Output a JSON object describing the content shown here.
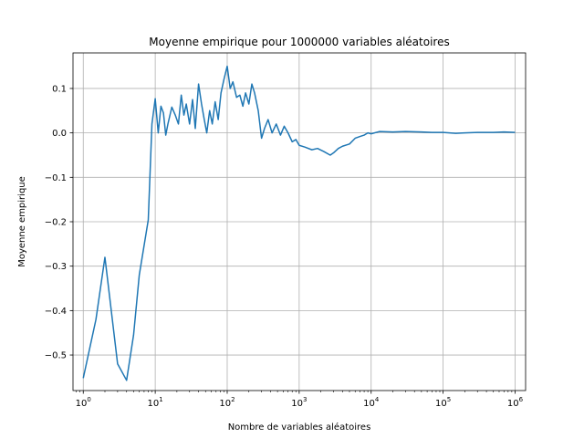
{
  "chart_data": {
    "type": "line",
    "title": "Moyenne empirique pour 1000000 variables aléatoires",
    "xlabel": "Nombre de variables aléatoires",
    "ylabel": "Moyenne empirique",
    "xscale": "log",
    "xlim": [
      0.72,
      1400000
    ],
    "ylim": [
      -0.58,
      0.18
    ],
    "grid": true,
    "line_color": "#1f77b4",
    "x_ticks": [
      {
        "value": 1,
        "base": "10",
        "exp": "0"
      },
      {
        "value": 10,
        "base": "10",
        "exp": "1"
      },
      {
        "value": 100,
        "base": "10",
        "exp": "2"
      },
      {
        "value": 1000,
        "base": "10",
        "exp": "3"
      },
      {
        "value": 10000,
        "base": "10",
        "exp": "4"
      },
      {
        "value": 100000,
        "base": "10",
        "exp": "5"
      },
      {
        "value": 1000000,
        "base": "10",
        "exp": "6"
      }
    ],
    "y_ticks": [
      {
        "value": 0.1,
        "label": "0.1"
      },
      {
        "value": 0.0,
        "label": "0.0"
      },
      {
        "value": -0.1,
        "label": "−0.1"
      },
      {
        "value": -0.2,
        "label": "−0.2"
      },
      {
        "value": -0.3,
        "label": "−0.3"
      },
      {
        "value": -0.4,
        "label": "−0.4"
      },
      {
        "value": -0.5,
        "label": "−0.5"
      }
    ],
    "series": [
      {
        "x": [
          1,
          1.5,
          2,
          3,
          4,
          5,
          6,
          8,
          9,
          10,
          11,
          12,
          13,
          14,
          15,
          17,
          19,
          21,
          23,
          25,
          27,
          30,
          33,
          36,
          40,
          44,
          48,
          52,
          57,
          62,
          68,
          75,
          82,
          90,
          100,
          110,
          120,
          135,
          150,
          165,
          180,
          200,
          220,
          240,
          270,
          300,
          330,
          370,
          420,
          480,
          550,
          620,
          700,
          800,
          900,
          1000,
          1200,
          1500,
          1800,
          2200,
          2700,
          3000,
          3500,
          4000,
          5000,
          6000,
          7000,
          8000,
          9000,
          10000,
          13000,
          20000,
          30000,
          50000,
          70000,
          100000,
          150000,
          200000,
          300000,
          500000,
          700000,
          1000000
        ],
        "y": [
          -0.552,
          -0.42,
          -0.28,
          -0.52,
          -0.557,
          -0.455,
          -0.32,
          -0.196,
          0.02,
          0.077,
          0.0,
          0.06,
          0.045,
          -0.005,
          0.02,
          0.058,
          0.04,
          0.02,
          0.085,
          0.04,
          0.065,
          0.02,
          0.075,
          0.01,
          0.11,
          0.065,
          0.03,
          0.0,
          0.05,
          0.02,
          0.07,
          0.03,
          0.09,
          0.12,
          0.15,
          0.1,
          0.115,
          0.08,
          0.085,
          0.06,
          0.09,
          0.065,
          0.11,
          0.09,
          0.05,
          -0.012,
          0.01,
          0.03,
          0.0,
          0.02,
          -0.005,
          0.015,
          0.0,
          -0.02,
          -0.015,
          -0.028,
          -0.032,
          -0.038,
          -0.035,
          -0.042,
          -0.05,
          -0.045,
          -0.035,
          -0.03,
          -0.025,
          -0.012,
          -0.008,
          -0.005,
          0.0,
          -0.002,
          0.003,
          0.002,
          0.003,
          0.002,
          0.001,
          0.001,
          -0.001,
          0.0,
          0.001,
          0.001,
          0.002,
          0.001
        ]
      }
    ]
  }
}
